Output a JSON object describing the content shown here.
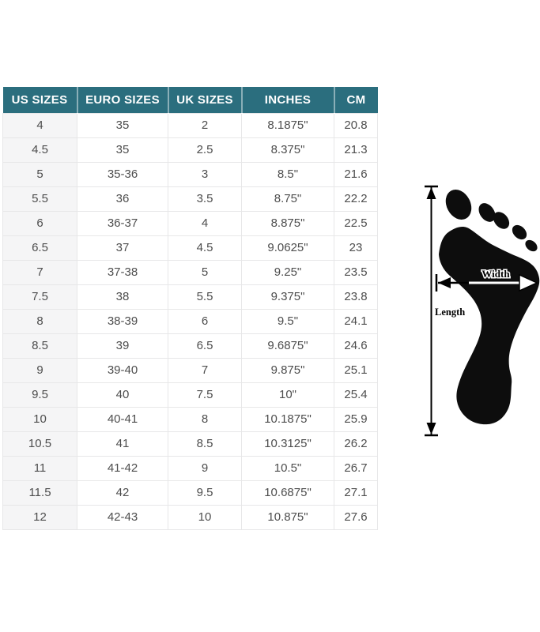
{
  "chart_data": {
    "type": "table",
    "title": "",
    "columns": [
      "US SIZES",
      "EURO SIZES",
      "UK SIZES",
      "INCHES",
      "CM"
    ],
    "rows": [
      [
        "4",
        "35",
        "2",
        "8.1875\"",
        "20.8"
      ],
      [
        "4.5",
        "35",
        "2.5",
        "8.375\"",
        "21.3"
      ],
      [
        "5",
        "35-36",
        "3",
        "8.5\"",
        "21.6"
      ],
      [
        "5.5",
        "36",
        "3.5",
        "8.75\"",
        "22.2"
      ],
      [
        "6",
        "36-37",
        "4",
        "8.875\"",
        "22.5"
      ],
      [
        "6.5",
        "37",
        "4.5",
        "9.0625\"",
        "23"
      ],
      [
        "7",
        "37-38",
        "5",
        "9.25\"",
        "23.5"
      ],
      [
        "7.5",
        "38",
        "5.5",
        "9.375\"",
        "23.8"
      ],
      [
        "8",
        "38-39",
        "6",
        "9.5\"",
        "24.1"
      ],
      [
        "8.5",
        "39",
        "6.5",
        "9.6875\"",
        "24.6"
      ],
      [
        "9",
        "39-40",
        "7",
        "9.875\"",
        "25.1"
      ],
      [
        "9.5",
        "40",
        "7.5",
        "10\"",
        "25.4"
      ],
      [
        "10",
        "40-41",
        "8",
        "10.1875\"",
        "25.9"
      ],
      [
        "10.5",
        "41",
        "8.5",
        "10.3125\"",
        "26.2"
      ],
      [
        "11",
        "41-42",
        "9",
        "10.5\"",
        "26.7"
      ],
      [
        "11.5",
        "42",
        "9.5",
        "10.6875\"",
        "27.1"
      ],
      [
        "12",
        "42-43",
        "10",
        "10.875\"",
        "27.6"
      ]
    ]
  },
  "diagram": {
    "width_label": "Width",
    "length_label": "Length"
  },
  "colors": {
    "header_bg": "#2b6e7e",
    "header_text": "#ffffff",
    "first_col_bg": "#f5f5f6",
    "row_bg": "#ffffff",
    "border": "#e7e7e8",
    "cell_text": "#4d4d4d",
    "foot": "#0d0d0d"
  }
}
